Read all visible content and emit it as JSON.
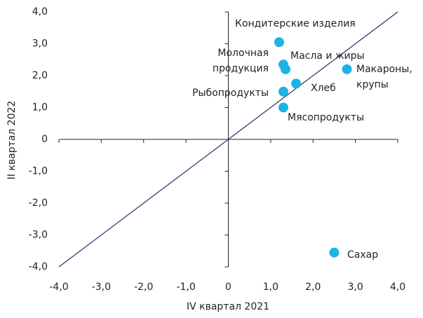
{
  "chart_data": {
    "type": "scatter",
    "x_label": "IV квартал 2021",
    "y_label": "II квартал 2022",
    "series": [
      {
        "color": "#1fb3e5",
        "labels": [
          [
            "Кондитерские изделия"
          ],
          [
            "Масла и жиры"
          ],
          [
            "Молочная",
            "продукция"
          ],
          [
            "Макароны,",
            "крупы"
          ],
          [
            "Хлеб"
          ],
          [
            "Рыбопродукты"
          ],
          [
            "Мясопродукты"
          ],
          [
            "Сахар"
          ]
        ],
        "x": [
          1.2,
          1.3,
          1.35,
          2.8,
          1.6,
          1.3,
          1.3,
          2.5
        ],
        "values": [
          3.05,
          2.35,
          2.2,
          2.2,
          1.75,
          1.5,
          1.0,
          -3.55
        ]
      }
    ],
    "diagonal_color": "#2d2b6b",
    "xlim": [
      -4,
      4
    ],
    "ylim": [
      -4,
      4
    ],
    "xticks": [
      {
        "value": -4,
        "label": "-4,0"
      },
      {
        "value": -3,
        "label": "-3,0"
      },
      {
        "value": -2,
        "label": "-2,0"
      },
      {
        "value": -1,
        "label": "-1,0"
      },
      0,
      {
        "value": 1,
        "label": "1,0"
      },
      {
        "value": 2,
        "label": "2,0"
      },
      {
        "value": 3,
        "label": "3,0"
      },
      {
        "value": 4,
        "label": "4,0"
      }
    ],
    "yticks": [
      {
        "value": -4,
        "label": "-4,0"
      },
      {
        "value": -3,
        "label": "-3,0"
      },
      {
        "value": -2,
        "label": "-2,0"
      },
      {
        "value": -1,
        "label": "-1,0"
      },
      0,
      {
        "value": 1,
        "label": "1,0"
      },
      {
        "value": 2,
        "label": "2,0"
      },
      {
        "value": 3,
        "label": "3,0"
      },
      {
        "value": 4,
        "label": "4,0"
      }
    ]
  }
}
